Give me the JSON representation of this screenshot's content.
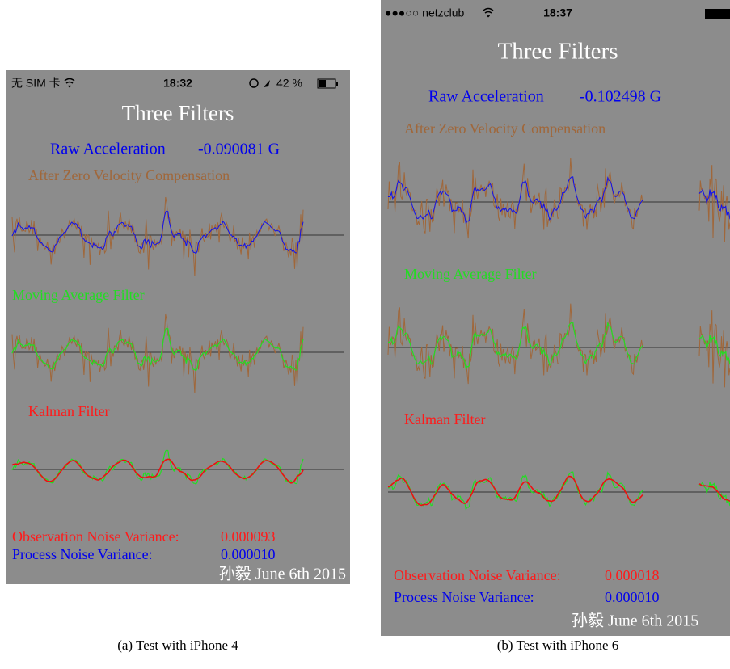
{
  "panels": [
    {
      "status_left": "无 SIM 卡",
      "status_time": "18:32",
      "status_right": "42 %",
      "title": "Three Filters",
      "raw_label": "Raw Acceleration",
      "raw_value": "-0.090081 G",
      "plot1_label": "After Zero Velocity Compensation",
      "plot2_label": "Moving Average Filter",
      "plot3_label": "Kalman Filter",
      "obs_label": "Observation Noise Variance:",
      "obs_value": "0.000093",
      "proc_label": "Process Noise Variance:",
      "proc_value": "0.000010",
      "signature": "孙毅 June 6th 2015",
      "caption": "(a)  Test with iPhone 4"
    },
    {
      "status_left": "●●●○○ netzclub",
      "status_time": "18:37",
      "title": "Three Filters",
      "raw_label": "Raw Acceleration",
      "raw_value": "-0.102498 G",
      "plot1_label": "After Zero Velocity Compensation",
      "plot2_label": "Moving Average Filter",
      "plot3_label": "Kalman Filter",
      "obs_label": "Observation Noise Variance:",
      "obs_value": "0.000018",
      "proc_label": "Process Noise Variance:",
      "proc_value": "0.000010",
      "signature": "孙毅 June 6th 2015",
      "caption": "(b)  Test with iPhone 6"
    }
  ]
}
